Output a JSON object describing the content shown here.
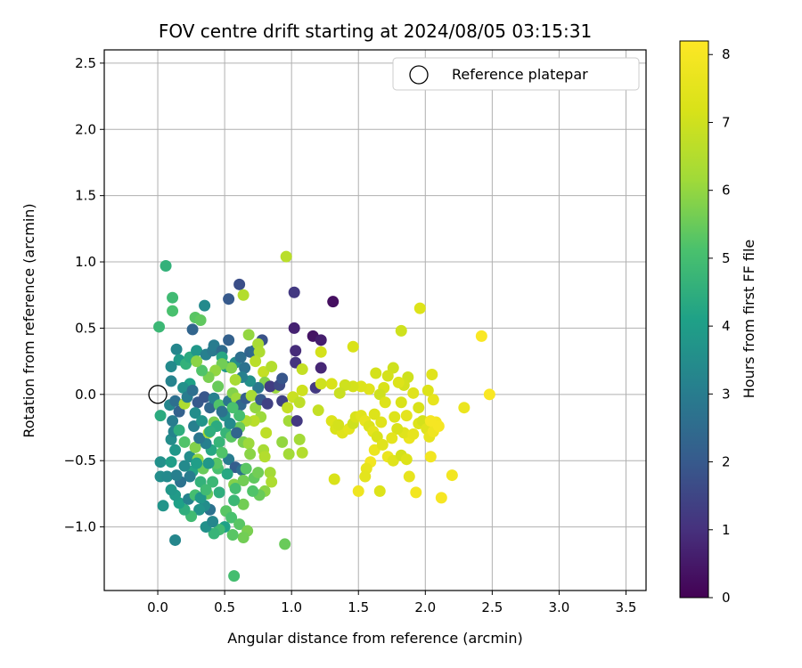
{
  "chart_data": {
    "type": "scatter",
    "title": "FOV centre drift starting at 2024/08/05 03:15:31",
    "xlabel": "Angular distance from reference (arcmin)",
    "ylabel": "Rotation from reference (arcmin)",
    "colorbar_label": "Hours from first FF file",
    "xlim": [
      -0.4,
      3.65
    ],
    "ylim": [
      -1.48,
      2.6
    ],
    "clim": [
      0,
      8.2
    ],
    "x_ticks": [
      0.0,
      0.5,
      1.0,
      1.5,
      2.0,
      2.5,
      3.0,
      3.5
    ],
    "x_tick_labels": [
      "0.0",
      "0.5",
      "1.0",
      "1.5",
      "2.0",
      "2.5",
      "3.0",
      "3.5"
    ],
    "y_ticks": [
      -1.0,
      -0.5,
      0.0,
      0.5,
      1.0,
      1.5,
      2.0,
      2.5
    ],
    "y_tick_labels": [
      "−1.0",
      "−0.5",
      "0.0",
      "0.5",
      "1.0",
      "1.5",
      "2.0",
      "2.5"
    ],
    "colorbar_ticks": [
      0,
      1,
      2,
      3,
      4,
      5,
      6,
      7,
      8
    ],
    "colorbar_tick_labels": [
      "0",
      "1",
      "2",
      "3",
      "4",
      "5",
      "6",
      "7",
      "8"
    ],
    "colormap": "viridis",
    "grid": true,
    "legend": {
      "placement": "top-right",
      "entries": [
        "Reference platepar"
      ]
    },
    "reference_point": {
      "label": "Reference platepar",
      "x": 0.0,
      "y": 0.0
    },
    "points": [
      [
        0.06,
        0.97,
        4.6
      ],
      [
        0.11,
        0.73,
        4.9
      ],
      [
        0.11,
        0.63,
        5.1
      ],
      [
        0.01,
        0.51,
        4.8
      ],
      [
        0.35,
        0.67,
        3.4
      ],
      [
        0.28,
        0.58,
        5.3
      ],
      [
        0.32,
        0.56,
        5.4
      ],
      [
        0.26,
        0.49,
        2.3
      ],
      [
        0.53,
        0.72,
        2.0
      ],
      [
        0.61,
        0.83,
        1.7
      ],
      [
        0.64,
        0.75,
        6.5
      ],
      [
        0.14,
        0.34,
        3.3
      ],
      [
        0.16,
        0.26,
        3.9
      ],
      [
        0.21,
        0.23,
        4.6
      ],
      [
        0.24,
        0.28,
        4.4
      ],
      [
        0.29,
        0.33,
        3.8
      ],
      [
        0.36,
        0.3,
        3.1
      ],
      [
        0.41,
        0.33,
        2.9
      ],
      [
        0.42,
        0.37,
        3.0
      ],
      [
        0.48,
        0.33,
        2.5
      ],
      [
        0.53,
        0.41,
        2.2
      ],
      [
        0.48,
        0.28,
        4.3
      ],
      [
        0.51,
        0.21,
        3.8
      ],
      [
        0.58,
        0.24,
        3.5
      ],
      [
        0.62,
        0.28,
        2.6
      ],
      [
        0.65,
        0.2,
        2.7
      ],
      [
        0.69,
        0.32,
        2.3
      ],
      [
        0.72,
        0.33,
        2.5
      ],
      [
        0.78,
        0.41,
        1.8
      ],
      [
        0.68,
        0.45,
        6.0
      ],
      [
        0.75,
        0.38,
        6.3
      ],
      [
        0.76,
        0.32,
        6.4
      ],
      [
        0.73,
        0.25,
        6.6
      ],
      [
        0.79,
        0.17,
        6.8
      ],
      [
        0.85,
        0.21,
        6.5
      ],
      [
        0.8,
        0.09,
        5.8
      ],
      [
        0.88,
        0.05,
        6.1
      ],
      [
        0.75,
        0.05,
        2.9
      ],
      [
        0.69,
        0.1,
        3.6
      ],
      [
        0.63,
        0.13,
        3.1
      ],
      [
        0.58,
        0.11,
        6.3
      ],
      [
        0.55,
        0.2,
        5.8
      ],
      [
        0.48,
        0.23,
        5.6
      ],
      [
        0.43,
        0.18,
        6.0
      ],
      [
        0.38,
        0.13,
        5.7
      ],
      [
        0.33,
        0.18,
        5.2
      ],
      [
        0.29,
        0.25,
        5.9
      ],
      [
        0.24,
        0.08,
        4.1
      ],
      [
        0.19,
        0.05,
        3.6
      ],
      [
        0.1,
        0.21,
        3.4
      ],
      [
        0.1,
        0.1,
        3.2
      ],
      [
        0.02,
        -0.16,
        4.4
      ],
      [
        0.09,
        -0.08,
        3.3
      ],
      [
        0.11,
        -0.2,
        3.0
      ],
      [
        0.13,
        -0.05,
        2.6
      ],
      [
        0.16,
        -0.13,
        2.2
      ],
      [
        0.2,
        -0.07,
        6.4
      ],
      [
        0.22,
        -0.02,
        3.0
      ],
      [
        0.26,
        0.03,
        2.6
      ],
      [
        0.3,
        -0.06,
        2.0
      ],
      [
        0.35,
        -0.02,
        1.9
      ],
      [
        0.39,
        -0.1,
        2.4
      ],
      [
        0.42,
        -0.03,
        3.1
      ],
      [
        0.45,
        0.06,
        5.5
      ],
      [
        0.46,
        -0.08,
        5.2
      ],
      [
        0.5,
        -0.16,
        3.6
      ],
      [
        0.53,
        -0.05,
        2.8
      ],
      [
        0.56,
        0.01,
        5.8
      ],
      [
        0.59,
        -0.03,
        6.1
      ],
      [
        0.62,
        -0.08,
        2.4
      ],
      [
        0.66,
        -0.03,
        2.1
      ],
      [
        0.7,
        -0.01,
        6.3
      ],
      [
        0.73,
        -0.1,
        6.0
      ],
      [
        0.77,
        -0.04,
        2.0
      ],
      [
        0.82,
        -0.07,
        1.4
      ],
      [
        0.84,
        0.06,
        1.3
      ],
      [
        0.91,
        0.07,
        1.6
      ],
      [
        0.93,
        0.12,
        1.9
      ],
      [
        0.93,
        -0.05,
        1.4
      ],
      [
        0.97,
        -0.1,
        6.8
      ],
      [
        0.98,
        -0.2,
        6.2
      ],
      [
        0.96,
        1.04,
        6.6
      ],
      [
        1.02,
        0.77,
        1.2
      ],
      [
        1.02,
        0.5,
        0.7
      ],
      [
        1.03,
        0.33,
        0.9
      ],
      [
        1.03,
        0.24,
        1.1
      ],
      [
        1.08,
        0.19,
        6.8
      ],
      [
        1.16,
        0.44,
        0.4
      ],
      [
        1.22,
        0.41,
        0.6
      ],
      [
        1.31,
        0.7,
        0.3
      ],
      [
        1.22,
        0.2,
        0.8
      ],
      [
        1.18,
        0.05,
        1.2
      ],
      [
        1.08,
        0.03,
        7.0
      ],
      [
        1.01,
        -0.02,
        6.9
      ],
      [
        1.06,
        -0.06,
        6.7
      ],
      [
        1.04,
        -0.2,
        1.2
      ],
      [
        1.06,
        -0.34,
        6.2
      ],
      [
        1.08,
        -0.44,
        6.5
      ],
      [
        0.98,
        -0.45,
        6.2
      ],
      [
        0.93,
        -0.36,
        6.0
      ],
      [
        0.81,
        -0.29,
        6.7
      ],
      [
        0.79,
        -0.42,
        6.3
      ],
      [
        0.8,
        -0.47,
        6.5
      ],
      [
        0.77,
        -0.17,
        6.1
      ],
      [
        0.72,
        -0.2,
        6.6
      ],
      [
        0.66,
        -0.2,
        6.4
      ],
      [
        0.61,
        -0.16,
        5.0
      ],
      [
        0.56,
        -0.1,
        5.1
      ],
      [
        0.51,
        -0.29,
        4.7
      ],
      [
        0.55,
        -0.32,
        5.3
      ],
      [
        0.53,
        -0.49,
        3.0
      ],
      [
        0.58,
        -0.55,
        2.1
      ],
      [
        0.63,
        -0.57,
        2.6
      ],
      [
        0.66,
        -0.56,
        5.3
      ],
      [
        0.72,
        -0.63,
        5.4
      ],
      [
        0.75,
        -0.59,
        5.6
      ],
      [
        0.84,
        -0.59,
        6.2
      ],
      [
        0.85,
        -0.66,
        6.4
      ],
      [
        0.8,
        -0.73,
        5.9
      ],
      [
        0.76,
        -0.76,
        5.5
      ],
      [
        0.71,
        -0.73,
        5.2
      ],
      [
        0.64,
        -0.83,
        5.6
      ],
      [
        0.57,
        -0.8,
        4.8
      ],
      [
        0.51,
        -0.88,
        5.3
      ],
      [
        0.55,
        -0.93,
        5.1
      ],
      [
        0.61,
        -0.98,
        5.3
      ],
      [
        0.67,
        -1.03,
        5.7
      ],
      [
        0.64,
        -1.08,
        5.6
      ],
      [
        0.56,
        -1.06,
        5.3
      ],
      [
        0.5,
        -1.0,
        4.1
      ],
      [
        0.46,
        -1.02,
        4.9
      ],
      [
        0.42,
        -1.05,
        4.7
      ],
      [
        0.36,
        -1.0,
        3.6
      ],
      [
        0.41,
        -0.96,
        3.3
      ],
      [
        0.39,
        -0.87,
        2.7
      ],
      [
        0.35,
        -0.84,
        3.5
      ],
      [
        0.31,
        -0.87,
        3.7
      ],
      [
        0.25,
        -0.92,
        4.9
      ],
      [
        0.2,
        -0.87,
        4.5
      ],
      [
        0.16,
        -0.82,
        4.1
      ],
      [
        0.13,
        -0.76,
        3.9
      ],
      [
        0.1,
        -0.72,
        3.8
      ],
      [
        0.13,
        -1.1,
        3.3
      ],
      [
        0.04,
        -0.84,
        3.7
      ],
      [
        0.02,
        -0.62,
        3.5
      ],
      [
        0.02,
        -0.51,
        3.6
      ],
      [
        0.07,
        -0.62,
        3.4
      ],
      [
        0.1,
        -0.51,
        4.0
      ],
      [
        0.13,
        -0.42,
        3.8
      ],
      [
        0.1,
        -0.34,
        3.5
      ],
      [
        0.12,
        -0.28,
        3.2
      ],
      [
        0.16,
        -0.27,
        4.5
      ],
      [
        0.2,
        -0.36,
        5.2
      ],
      [
        0.24,
        -0.47,
        3.5
      ],
      [
        0.26,
        -0.58,
        4.2
      ],
      [
        0.28,
        -0.4,
        5.8
      ],
      [
        0.3,
        -0.49,
        6.0
      ],
      [
        0.34,
        -0.56,
        5.5
      ],
      [
        0.32,
        -0.66,
        4.6
      ],
      [
        0.37,
        -0.75,
        5.5
      ],
      [
        0.41,
        -0.66,
        4.8
      ],
      [
        0.46,
        -0.74,
        4.5
      ],
      [
        0.45,
        -0.56,
        5.1
      ],
      [
        0.44,
        -0.52,
        5.3
      ],
      [
        0.4,
        -0.42,
        4.3
      ],
      [
        0.36,
        -0.37,
        3.1
      ],
      [
        0.31,
        -0.33,
        2.8
      ],
      [
        0.27,
        -0.24,
        3.1
      ],
      [
        0.28,
        -0.14,
        3.5
      ],
      [
        0.33,
        -0.2,
        3.7
      ],
      [
        0.38,
        -0.29,
        6.3
      ],
      [
        0.42,
        -0.21,
        5.7
      ],
      [
        0.46,
        -0.36,
        4.7
      ],
      [
        0.48,
        -0.44,
        5.2
      ],
      [
        0.52,
        -0.6,
        4.3
      ],
      [
        0.57,
        -0.68,
        5.8
      ],
      [
        0.58,
        -0.71,
        5.0
      ],
      [
        0.61,
        -0.25,
        5.5
      ],
      [
        0.64,
        -0.36,
        5.7
      ],
      [
        0.68,
        -0.37,
        6.1
      ],
      [
        0.69,
        -0.45,
        5.9
      ],
      [
        0.64,
        -0.65,
        5.6
      ],
      [
        0.57,
        -1.37,
        5.0
      ],
      [
        0.95,
        -1.13,
        5.5
      ],
      [
        0.59,
        -0.29,
        2.3
      ],
      [
        0.54,
        -0.22,
        3.4
      ],
      [
        0.48,
        -0.13,
        2.7
      ],
      [
        0.44,
        -0.24,
        4.4
      ],
      [
        0.39,
        -0.28,
        4.5
      ],
      [
        0.38,
        -0.52,
        3.8
      ],
      [
        0.29,
        -0.52,
        4.0
      ],
      [
        0.24,
        -0.62,
        3.0
      ],
      [
        0.2,
        -0.54,
        3.4
      ],
      [
        0.17,
        -0.66,
        2.7
      ],
      [
        0.14,
        -0.61,
        3.1
      ],
      [
        0.23,
        -0.79,
        3.2
      ],
      [
        0.28,
        -0.76,
        5.0
      ],
      [
        0.32,
        -0.78,
        3.8
      ],
      [
        0.36,
        -0.72,
        4.9
      ],
      [
        1.32,
        -0.64,
        7.2
      ],
      [
        1.3,
        -0.2,
        7.3
      ],
      [
        1.33,
        -0.26,
        7.2
      ],
      [
        1.38,
        -0.29,
        7.4
      ],
      [
        1.35,
        -0.23,
        7.1
      ],
      [
        1.43,
        -0.26,
        7.5
      ],
      [
        1.46,
        -0.22,
        7.0
      ],
      [
        1.48,
        -0.17,
        7.2
      ],
      [
        1.52,
        -0.16,
        7.4
      ],
      [
        1.55,
        -0.2,
        7.6
      ],
      [
        1.58,
        -0.24,
        7.3
      ],
      [
        1.61,
        -0.28,
        7.5
      ],
      [
        1.64,
        -0.32,
        7.2
      ],
      [
        1.67,
        -0.21,
        7.4
      ],
      [
        1.62,
        -0.42,
        7.7
      ],
      [
        1.59,
        -0.51,
        7.9
      ],
      [
        1.56,
        -0.56,
        7.6
      ],
      [
        1.5,
        -0.73,
        7.8
      ],
      [
        1.55,
        -0.62,
        7.5
      ],
      [
        1.66,
        -0.73,
        7.3
      ],
      [
        1.72,
        -0.47,
        7.7
      ],
      [
        1.76,
        -0.5,
        7.4
      ],
      [
        1.82,
        -0.46,
        7.1
      ],
      [
        1.86,
        -0.49,
        7.3
      ],
      [
        1.88,
        -0.62,
        7.6
      ],
      [
        1.93,
        -0.74,
        7.9
      ],
      [
        1.88,
        -0.33,
        7.7
      ],
      [
        1.84,
        -0.29,
        7.4
      ],
      [
        1.79,
        -0.26,
        7.2
      ],
      [
        1.77,
        -0.17,
        7.3
      ],
      [
        1.82,
        -0.06,
        7.2
      ],
      [
        1.86,
        -0.16,
        7.5
      ],
      [
        1.91,
        -0.3,
        7.6
      ],
      [
        1.95,
        -0.22,
        7.3
      ],
      [
        1.98,
        -0.2,
        7.1
      ],
      [
        2.01,
        -0.26,
        7.4
      ],
      [
        2.03,
        -0.32,
        7.6
      ],
      [
        2.06,
        -0.28,
        7.8
      ],
      [
        2.08,
        -0.21,
        7.9
      ],
      [
        2.1,
        -0.24,
        8.0
      ],
      [
        2.04,
        -0.47,
        7.9
      ],
      [
        2.12,
        -0.78,
        8.0
      ],
      [
        2.2,
        -0.61,
        7.9
      ],
      [
        2.29,
        -0.1,
        7.7
      ],
      [
        2.42,
        0.44,
        8.1
      ],
      [
        2.48,
        0.0,
        8.1
      ],
      [
        2.04,
        -0.2,
        8.0
      ],
      [
        2.06,
        -0.04,
        7.6
      ],
      [
        2.02,
        0.03,
        7.3
      ],
      [
        2.05,
        0.15,
        7.4
      ],
      [
        1.95,
        -0.1,
        7.2
      ],
      [
        1.91,
        0.01,
        7.4
      ],
      [
        1.87,
        0.13,
        7.0
      ],
      [
        1.84,
        0.07,
        7.1
      ],
      [
        1.8,
        0.09,
        7.3
      ],
      [
        1.76,
        0.2,
        7.0
      ],
      [
        1.72,
        0.14,
        7.1
      ],
      [
        1.69,
        0.05,
        7.2
      ],
      [
        1.66,
        0.0,
        7.0
      ],
      [
        1.63,
        0.16,
        7.1
      ],
      [
        1.58,
        0.04,
        7.4
      ],
      [
        1.52,
        0.06,
        7.3
      ],
      [
        1.46,
        0.06,
        7.1
      ],
      [
        1.4,
        0.07,
        7.0
      ],
      [
        1.36,
        0.01,
        6.9
      ],
      [
        1.3,
        0.08,
        7.2
      ],
      [
        1.22,
        0.08,
        7.0
      ],
      [
        1.2,
        -0.12,
        6.8
      ],
      [
        1.22,
        0.32,
        7.1
      ],
      [
        1.46,
        0.36,
        7.2
      ],
      [
        1.82,
        0.48,
        7.0
      ],
      [
        1.96,
        0.65,
        7.3
      ],
      [
        1.7,
        -0.06,
        7.3
      ],
      [
        1.75,
        -0.33,
        7.5
      ],
      [
        1.68,
        -0.38,
        7.4
      ],
      [
        1.62,
        -0.15,
        7.3
      ]
    ]
  }
}
